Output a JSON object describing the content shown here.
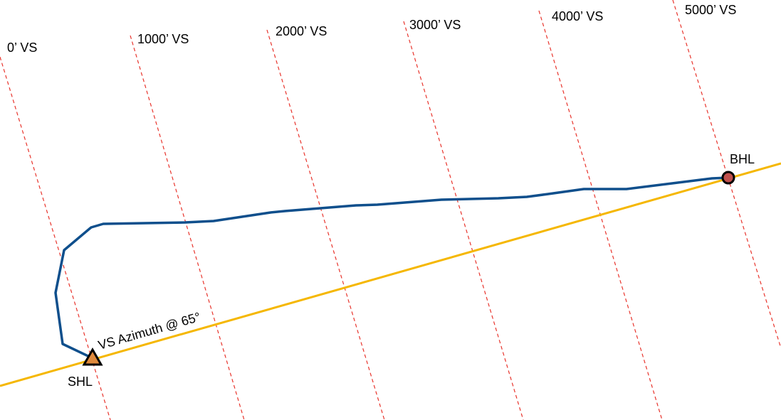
{
  "vs_lines": [
    "0’ VS",
    "1000’ VS",
    "2000’ VS",
    "3000’ VS",
    "4000’ VS",
    "5000’ VS"
  ],
  "azimuth_label": "VS Azimuth @ 65°",
  "shl_label": "SHL",
  "bhl_label": "BHL"
}
